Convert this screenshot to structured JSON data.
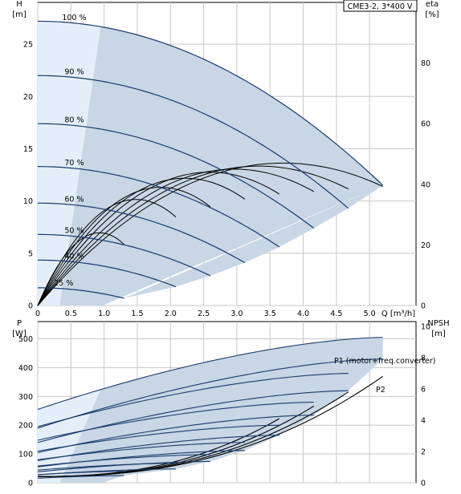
{
  "chart_data": [
    {
      "type": "line",
      "title": "CME3-2, 3*400 V",
      "y_label": "H",
      "y_unit": "[m]",
      "y2_label": "eta",
      "y2_unit": "[%]",
      "x_axis_label": "Q [m³/h]",
      "x_ticks": [
        "0",
        "0.5",
        "1.0",
        "1.5",
        "2.0",
        "2.5",
        "3.0",
        "3.5",
        "4.0",
        "4.5",
        "5.0"
      ],
      "y_ticks": [
        "0",
        "5",
        "10",
        "15",
        "20",
        "25"
      ],
      "y2_ticks": [
        "0",
        "20",
        "40",
        "60",
        "80"
      ],
      "xlim": [
        0,
        5.7
      ],
      "ylim": [
        0,
        29
      ],
      "y2lim": [
        0,
        100
      ],
      "grid": true,
      "colors": {
        "curve": "#1b3a6b",
        "shade": "#c8d6e5",
        "shade_light": "#e3eef8",
        "eta": "#000000",
        "grid": "#c8c8c8"
      },
      "series": [
        {
          "name": "100 %",
          "h0": 27.2,
          "qmax": 5.2,
          "hend": 11.5
        },
        {
          "name": "90 %",
          "h0": 22.0,
          "qmax": 4.68,
          "hend": 9.3
        },
        {
          "name": "80 %",
          "h0": 17.4,
          "qmax": 4.16,
          "hend": 7.4
        },
        {
          "name": "70 %",
          "h0": 13.3,
          "qmax": 3.64,
          "hend": 5.6
        },
        {
          "name": "60 %",
          "h0": 9.8,
          "qmax": 3.12,
          "hend": 4.1
        },
        {
          "name": "50 %",
          "h0": 6.8,
          "qmax": 2.6,
          "hend": 2.85
        },
        {
          "name": "40 %",
          "h0": 4.35,
          "qmax": 2.08,
          "hend": 1.8
        },
        {
          "name": "25 %",
          "h0": 1.7,
          "qmax": 1.3,
          "hend": 0.7
        }
      ],
      "efficiency_series": [
        {
          "qmax": 5.2,
          "peak_q": 3.7,
          "peak_eta": 47
        },
        {
          "qmax": 4.68,
          "peak_q": 3.33,
          "peak_eta": 46
        },
        {
          "qmax": 4.16,
          "peak_q": 2.96,
          "peak_eta": 45
        },
        {
          "qmax": 3.64,
          "peak_q": 2.59,
          "peak_eta": 44
        },
        {
          "qmax": 3.12,
          "peak_q": 2.22,
          "peak_eta": 42
        },
        {
          "qmax": 2.6,
          "peak_q": 1.85,
          "peak_eta": 39
        },
        {
          "qmax": 2.08,
          "peak_q": 1.48,
          "peak_eta": 35
        },
        {
          "qmax": 1.3,
          "peak_q": 0.93,
          "peak_eta": 24
        }
      ]
    },
    {
      "type": "line",
      "y_label": "P",
      "y_unit": "[W]",
      "y2_label": "NPSH",
      "y2_unit": "[m]",
      "y_ticks": [
        "0",
        "100",
        "200",
        "300",
        "400",
        "500"
      ],
      "y2_ticks": [
        "0",
        "2",
        "4",
        "6",
        "8",
        "10"
      ],
      "ylim": [
        0,
        560
      ],
      "y2lim": [
        0,
        10.3
      ],
      "annotations": [
        "P1 (motor+freq.converter)",
        "P2"
      ],
      "power_series": [
        {
          "p1_start": 255,
          "p1_end": 505,
          "p2_start": 190,
          "p2_end": 430,
          "qmax": 5.2
        },
        {
          "p1_start": 195,
          "p1_end": 380,
          "p2_start": 140,
          "p2_end": 320,
          "qmax": 4.68
        },
        {
          "p1_start": 148,
          "p1_end": 280,
          "p2_start": 105,
          "p2_end": 235,
          "qmax": 4.16
        },
        {
          "p1_start": 110,
          "p1_end": 200,
          "p2_start": 77,
          "p2_end": 165,
          "qmax": 3.64
        },
        {
          "p1_start": 80,
          "p1_end": 140,
          "p2_start": 55,
          "p2_end": 112,
          "qmax": 3.12
        },
        {
          "p1_start": 58,
          "p1_end": 98,
          "p2_start": 38,
          "p2_end": 74,
          "qmax": 2.6
        },
        {
          "p1_start": 44,
          "p1_end": 68,
          "p2_start": 28,
          "p2_end": 48,
          "qmax": 2.08
        },
        {
          "p1_start": 28,
          "p1_end": 40,
          "p2_start": 16,
          "p2_end": 25,
          "qmax": 1.3
        }
      ],
      "npsh_series": [
        {
          "qmax": 5.2,
          "npsh_end": 6.8
        },
        {
          "qmax": 4.68,
          "npsh_end": 5.8
        },
        {
          "qmax": 4.16,
          "npsh_end": 4.9
        },
        {
          "qmax": 3.64,
          "npsh_end": 4.1
        }
      ]
    }
  ]
}
